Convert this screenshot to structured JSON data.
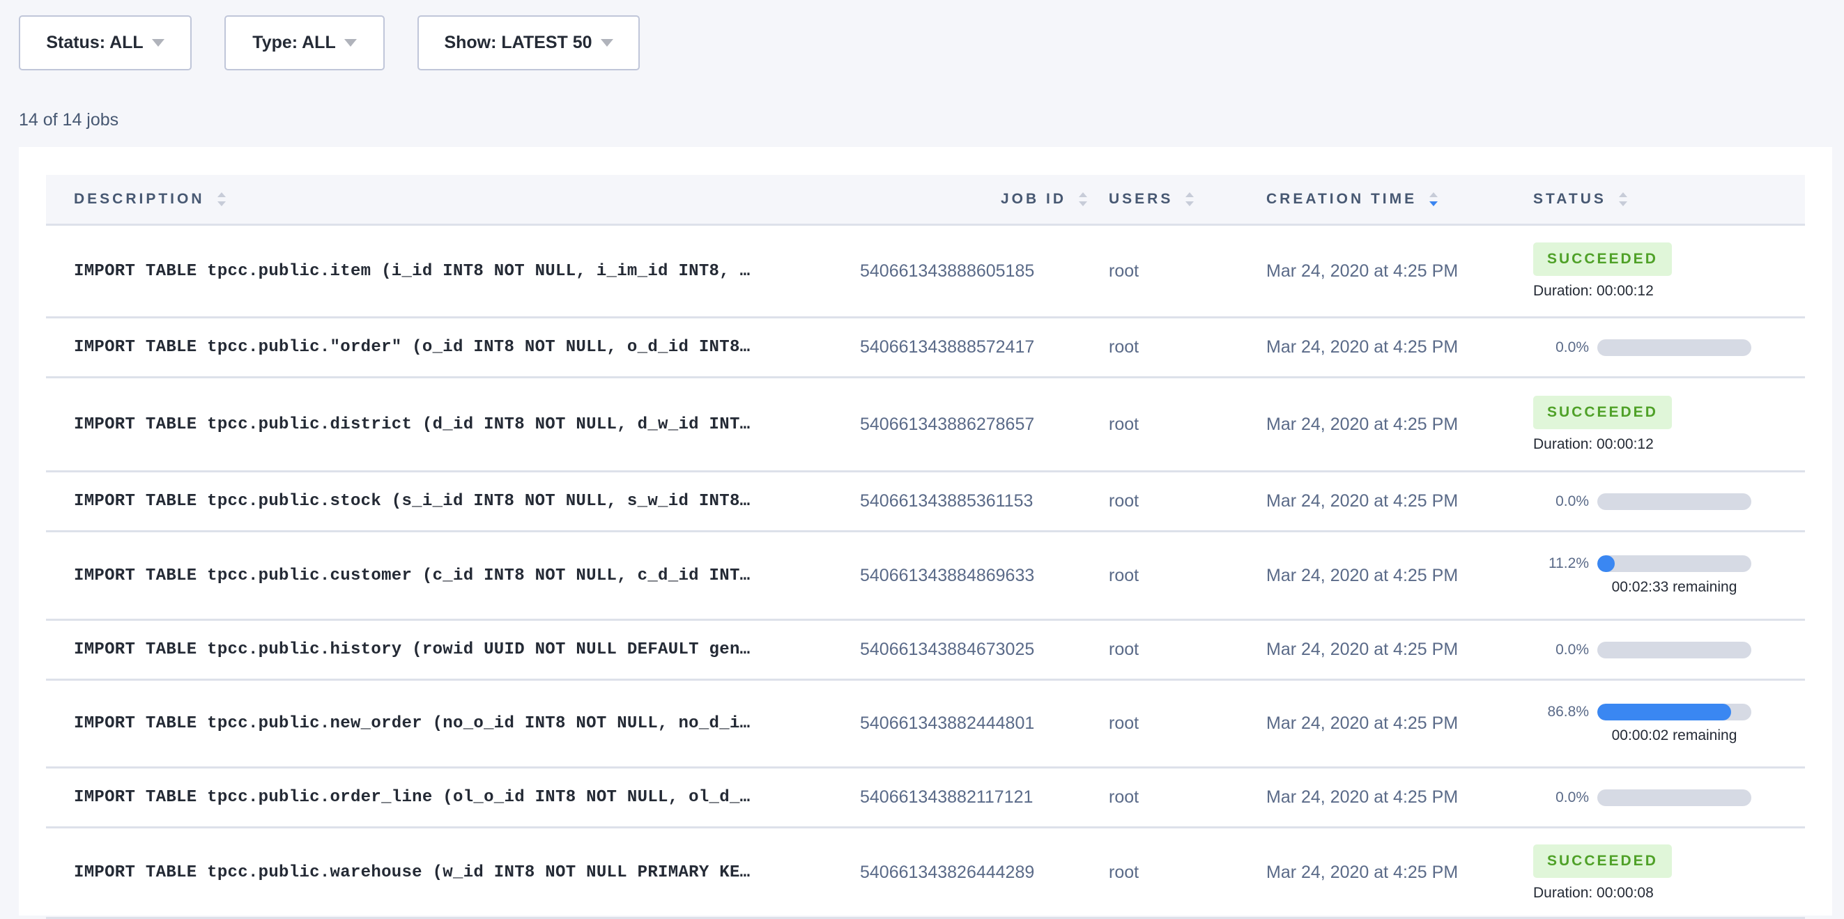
{
  "filters": {
    "status_label": "Status: ALL",
    "type_label": "Type: ALL",
    "show_label": "Show: LATEST 50"
  },
  "job_count": "14 of 14 jobs",
  "table": {
    "columns": [
      "DESCRIPTION",
      "JOB ID",
      "USERS",
      "CREATION TIME",
      "STATUS"
    ],
    "sorted_column": "CREATION TIME",
    "sort_direction": "descending",
    "rows": [
      {
        "description": "IMPORT TABLE tpcc.public.item (i_id INT8 NOT NULL, i_im_id INT8, …",
        "job_id": "540661343888605185",
        "user": "root",
        "created": "Mar 24, 2020 at 4:25 PM",
        "status": "SUCCEEDED",
        "duration": "Duration: 00:00:12"
      },
      {
        "description": "IMPORT TABLE tpcc.public.\"order\" (o_id INT8 NOT NULL, o_d_id INT8…",
        "job_id": "540661343888572417",
        "user": "root",
        "created": "Mar 24, 2020 at 4:25 PM",
        "progress": 0.0,
        "progress_label": "0.0%"
      },
      {
        "description": "IMPORT TABLE tpcc.public.district (d_id INT8 NOT NULL, d_w_id INT…",
        "job_id": "540661343886278657",
        "user": "root",
        "created": "Mar 24, 2020 at 4:25 PM",
        "status": "SUCCEEDED",
        "duration": "Duration: 00:00:12"
      },
      {
        "description": "IMPORT TABLE tpcc.public.stock (s_i_id INT8 NOT NULL, s_w_id INT8…",
        "job_id": "540661343885361153",
        "user": "root",
        "created": "Mar 24, 2020 at 4:25 PM",
        "progress": 0.0,
        "progress_label": "0.0%"
      },
      {
        "description": "IMPORT TABLE tpcc.public.customer (c_id INT8 NOT NULL, c_d_id INT…",
        "job_id": "540661343884869633",
        "user": "root",
        "created": "Mar 24, 2020 at 4:25 PM",
        "progress": 11.2,
        "progress_label": "11.2%",
        "remaining": "00:02:33 remaining"
      },
      {
        "description": "IMPORT TABLE tpcc.public.history (rowid UUID NOT NULL DEFAULT gen…",
        "job_id": "540661343884673025",
        "user": "root",
        "created": "Mar 24, 2020 at 4:25 PM",
        "progress": 0.0,
        "progress_label": "0.0%"
      },
      {
        "description": "IMPORT TABLE tpcc.public.new_order (no_o_id INT8 NOT NULL, no_d_i…",
        "job_id": "540661343882444801",
        "user": "root",
        "created": "Mar 24, 2020 at 4:25 PM",
        "progress": 86.8,
        "progress_label": "86.8%",
        "remaining": "00:00:02 remaining"
      },
      {
        "description": "IMPORT TABLE tpcc.public.order_line (ol_o_id INT8 NOT NULL, ol_d_…",
        "job_id": "540661343882117121",
        "user": "root",
        "created": "Mar 24, 2020 at 4:25 PM",
        "progress": 0.0,
        "progress_label": "0.0%"
      },
      {
        "description": "IMPORT TABLE tpcc.public.warehouse (w_id INT8 NOT NULL PRIMARY KE…",
        "job_id": "540661343826444289",
        "user": "root",
        "created": "Mar 24, 2020 at 4:25 PM",
        "status": "SUCCEEDED",
        "duration": "Duration: 00:00:08"
      }
    ]
  },
  "colors": {
    "accent": "#3a87f2",
    "success_bg": "#e0f6d9",
    "success_text": "#4fa128",
    "progress_track": "#d6dae4"
  }
}
